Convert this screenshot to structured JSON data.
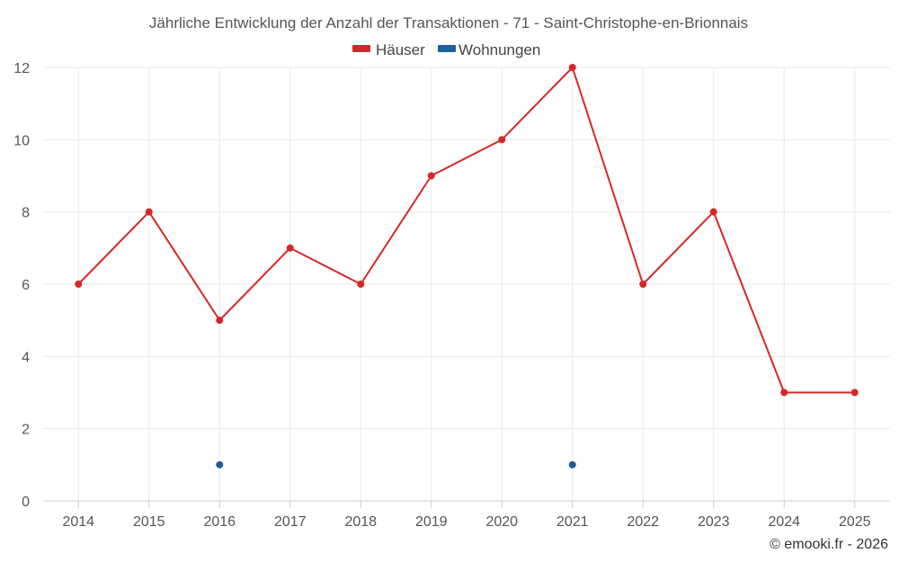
{
  "chart_data": {
    "type": "line",
    "title": "Jährliche Entwicklung der Anzahl der Transaktionen - 71 - Saint-Christophe-en-Brionnais",
    "categories": [
      "2014",
      "2015",
      "2016",
      "2017",
      "2018",
      "2019",
      "2020",
      "2021",
      "2022",
      "2023",
      "2024",
      "2025"
    ],
    "y_ticks": [
      "0",
      "2",
      "4",
      "6",
      "8",
      "10",
      "12"
    ],
    "ylim": [
      0,
      12
    ],
    "grid": true,
    "legend_position": "top-center",
    "series": [
      {
        "name": "Häuser",
        "color": "#d62728",
        "values": [
          6,
          8,
          5,
          7,
          6,
          9,
          10,
          12,
          6,
          8,
          3,
          3
        ]
      },
      {
        "name": "Wohnungen",
        "color": "#1f5f9a",
        "values": [
          null,
          null,
          1,
          null,
          null,
          null,
          null,
          1,
          null,
          null,
          null,
          null
        ]
      }
    ],
    "credit": "© emooki.fr - 2026"
  }
}
